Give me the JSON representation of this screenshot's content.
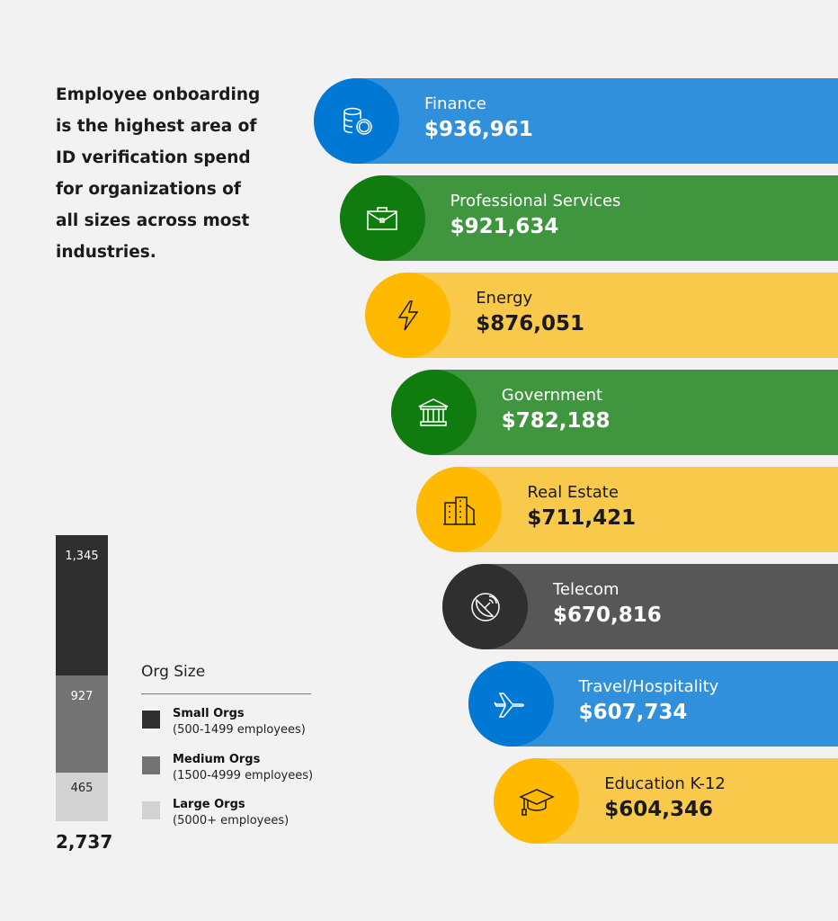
{
  "intro": "Employee onboarding is the highest area of ID verification spend for organizations of all sizes across most industries.",
  "chart_data": [
    {
      "type": "bar",
      "orientation": "horizontal",
      "categories": [
        "Finance",
        "Professional Services",
        "Energy",
        "Government",
        "Real Estate",
        "Telecom",
        "Travel/Hospitality",
        "Education K-12"
      ],
      "values": [
        936961,
        921634,
        876051,
        782188,
        711421,
        670816,
        607734,
        604346
      ],
      "value_labels": [
        "$936,961",
        "$921,634",
        "$876,051",
        "$782,188",
        "$711,421",
        "$670,816",
        "$607,734",
        "$604,346"
      ],
      "icons": [
        "coins-icon",
        "briefcase-icon",
        "lightning-icon",
        "government-building-icon",
        "city-buildings-icon",
        "satellite-dish-icon",
        "airplane-icon",
        "graduation-cap-icon"
      ],
      "bar_colors": [
        "#3190dc",
        "#3f963f",
        "#f9c94b",
        "#3f963f",
        "#f9c94b",
        "#575757",
        "#3190dc",
        "#f9c94b"
      ],
      "circle_colors": [
        "#0078d4",
        "#107c10",
        "#ffb900",
        "#107c10",
        "#ffb900",
        "#2f2f2f",
        "#0078d4",
        "#ffb900"
      ],
      "text_colors": [
        "#ffffff",
        "#ffffff",
        "#1a1a1a",
        "#ffffff",
        "#1a1a1a",
        "#ffffff",
        "#ffffff",
        "#1a1a1a"
      ]
    },
    {
      "type": "bar",
      "stacked": true,
      "legend_title": "Org Size",
      "series": [
        {
          "name": "Small Orgs",
          "desc": "(500-1499 employees)",
          "value": 1345,
          "label": "1,345",
          "color": "#2f2f2f"
        },
        {
          "name": "Medium Orgs",
          "desc": "(1500-4999 employees)",
          "value": 927,
          "label": "927",
          "color": "#737373"
        },
        {
          "name": "Large Orgs",
          "desc": "(5000+ employees)",
          "value": 465,
          "label": "465",
          "color": "#d2d2d2"
        }
      ],
      "total_label": "2,737"
    }
  ]
}
